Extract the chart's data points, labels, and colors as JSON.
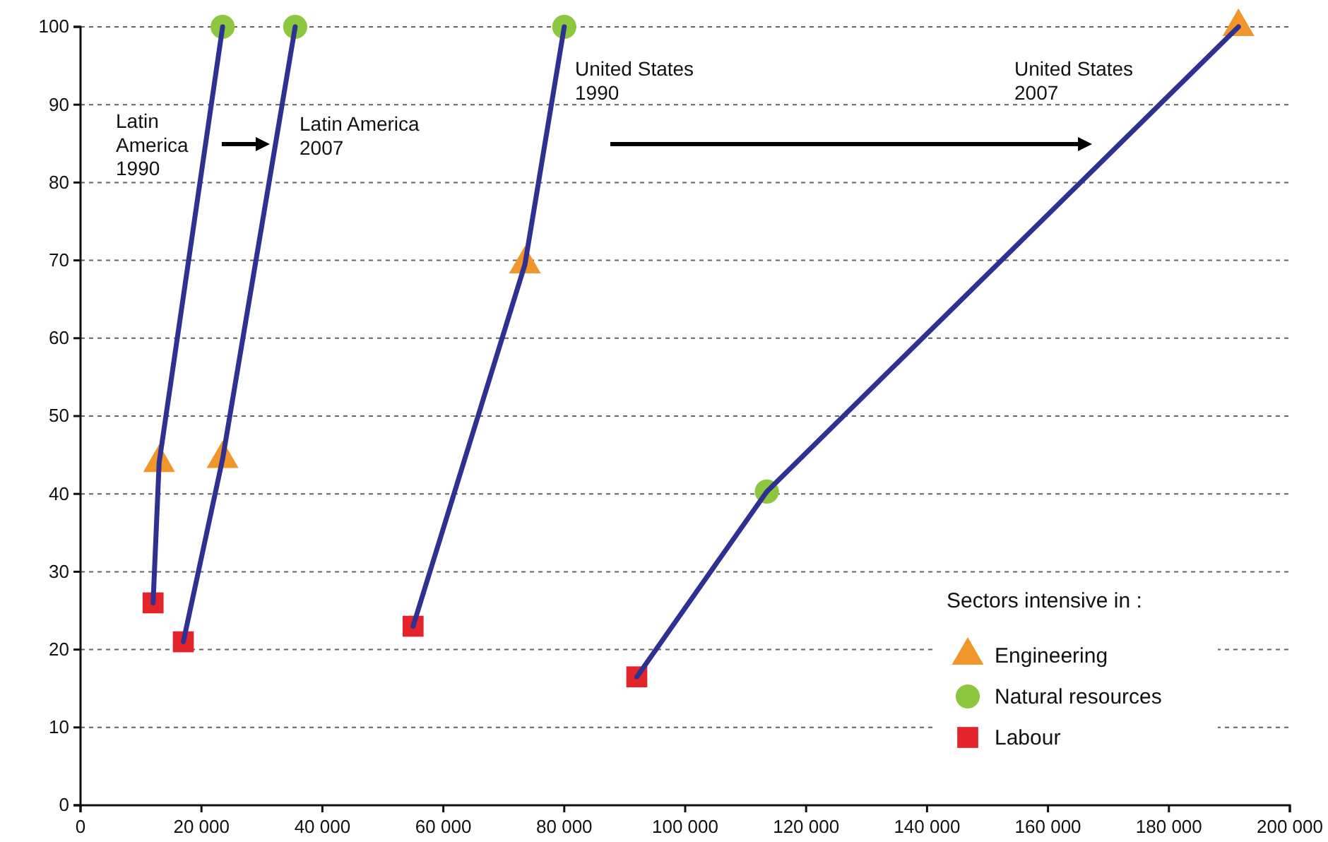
{
  "chart_data": {
    "type": "scatter",
    "xlim": [
      0,
      200000
    ],
    "xticks": [
      0,
      {
        "value": 20000,
        "label": "20 000"
      },
      {
        "value": 40000,
        "label": "40 000"
      },
      {
        "value": 60000,
        "label": "60 000"
      },
      {
        "value": 80000,
        "label": "80 000"
      },
      {
        "value": 100000,
        "label": "100 000"
      },
      {
        "value": 120000,
        "label": "120 000"
      },
      {
        "value": 140000,
        "label": "140 000"
      },
      {
        "value": 160000,
        "label": "160 000"
      },
      {
        "value": 180000,
        "label": "180 000"
      },
      {
        "value": 200000,
        "label": "200 000"
      }
    ],
    "ylim": [
      0,
      100
    ],
    "yticks": [
      0,
      10,
      20,
      30,
      40,
      50,
      60,
      70,
      80,
      90,
      100
    ],
    "grid": "y",
    "legend": "bottom right",
    "legend_title": "Sectors intensive in :",
    "series": [
      {
        "type": "line",
        "color": "#2e3192",
        "x": [
          12000,
          13000,
          23500
        ],
        "values": [
          26,
          44,
          100
        ]
      },
      {
        "type": "line",
        "color": "#2e3192",
        "x": [
          17000,
          23500,
          35500
        ],
        "values": [
          21,
          44.5,
          100
        ]
      },
      {
        "type": "line",
        "color": "#2e3192",
        "x": [
          55000,
          73500,
          80000
        ],
        "values": [
          23,
          69.5,
          100
        ]
      },
      {
        "type": "line",
        "color": "#2e3192",
        "x": [
          92000,
          113500,
          191500
        ],
        "values": [
          16.5,
          40.3,
          100
        ]
      },
      {
        "name": "Engineering",
        "color": "#f0962a",
        "marker": "triangle",
        "x": [
          13000,
          23500,
          73500,
          191500
        ],
        "values": [
          44,
          44.5,
          69.5,
          100
        ]
      },
      {
        "name": "Natural resources",
        "color": "#8dc63f",
        "marker": "circle",
        "x": [
          23500,
          35500,
          80000,
          113500
        ],
        "values": [
          100,
          100,
          100,
          40.3
        ]
      },
      {
        "name": "Labour",
        "color": "#e3242b",
        "marker": "square",
        "x": [
          12000,
          17000,
          55000,
          92000
        ],
        "values": [
          26,
          21,
          23,
          16.5
        ]
      }
    ],
    "annotations": [
      "Latin\nAmerica\n1990",
      "Latin America\n2007",
      "United States\n1990",
      "United States\n2007"
    ]
  }
}
